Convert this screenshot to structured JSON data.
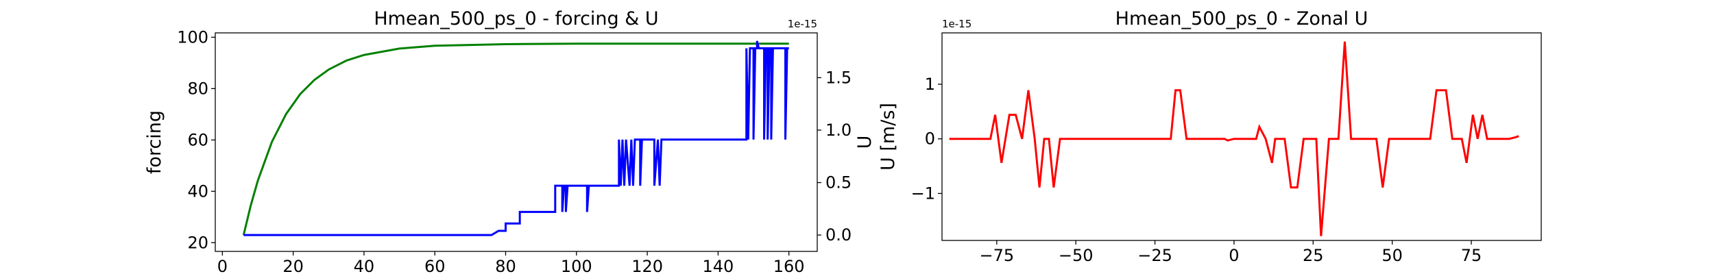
{
  "chart_data": [
    {
      "type": "line",
      "title": "Hmean_500_ps_0 - forcing & U",
      "ylabel": "forcing",
      "y2label": "U",
      "y2_offset": "1e-15",
      "xlim": [
        -2,
        168
      ],
      "xticks": [
        0,
        20,
        40,
        60,
        80,
        100,
        120,
        140,
        160
      ],
      "ylim": [
        16.6,
        101.7
      ],
      "yticks": [
        20,
        40,
        60,
        80,
        100
      ],
      "y2lim": [
        -0.156,
        1.927
      ],
      "y2ticks": [
        {
          "value": 0,
          "label": "0.0"
        },
        {
          "value": 0.5,
          "label": "0.5"
        },
        {
          "value": 1.0,
          "label": "1.0"
        },
        {
          "value": 1.5,
          "label": "1.5"
        }
      ],
      "series": [
        {
          "name": "forcing",
          "color": "#008000",
          "x": [
            6,
            8,
            10,
            14,
            18,
            22,
            26,
            30,
            35,
            40,
            50,
            60,
            80,
            100,
            130,
            160
          ],
          "values": [
            23.0,
            34.4,
            44.1,
            59.3,
            70.1,
            77.9,
            83.4,
            87.4,
            90.9,
            93.1,
            95.6,
            96.7,
            97.3,
            97.5,
            97.5,
            97.5
          ]
        },
        {
          "name": "U",
          "color": "#0000ff",
          "axis": "y2",
          "x": [
            6,
            76,
            78,
            80,
            80,
            84,
            84,
            94,
            94,
            96,
            96,
            96.5,
            97,
            97,
            97.5,
            103,
            103,
            103.5,
            112,
            112,
            112.5,
            113,
            113.5,
            114,
            115,
            115.5,
            116,
            116.5,
            118,
            118,
            118.5,
            122,
            122,
            123,
            123.5,
            124,
            148,
            148,
            148.5,
            149,
            150,
            150,
            150.5,
            151,
            151,
            151.5,
            153,
            153,
            153.5,
            154,
            154,
            154.5,
            155,
            155,
            155.5,
            159,
            159,
            159.5,
            160
          ],
          "values": [
            0,
            0,
            0.04,
            0.04,
            0.11,
            0.11,
            0.22,
            0.22,
            0.47,
            0.47,
            0.22,
            0.47,
            0.47,
            0.22,
            0.47,
            0.47,
            0.22,
            0.47,
            0.47,
            0.91,
            0.47,
            0.91,
            0.47,
            0.91,
            0.47,
            0.91,
            0.47,
            0.91,
            0.91,
            0.47,
            0.91,
            0.91,
            0.47,
            0.91,
            0.47,
            0.91,
            0.91,
            1.78,
            0.91,
            1.78,
            1.78,
            0.91,
            1.78,
            1.78,
            1.85,
            1.78,
            1.78,
            0.91,
            1.78,
            1.78,
            0.91,
            1.78,
            1.78,
            0.91,
            1.78,
            1.78,
            0.91,
            1.78,
            1.78
          ]
        }
      ]
    },
    {
      "type": "line",
      "title": "Hmean_500_ps_0 - Zonal U",
      "ylabel": "U [m/s]",
      "y_offset": "1e-15",
      "xlim": [
        -92.3,
        97.1
      ],
      "xticks": [
        {
          "value": -75,
          "label": "−75"
        },
        {
          "value": -50,
          "label": "−50"
        },
        {
          "value": -25,
          "label": "−25"
        },
        0,
        25,
        50,
        75
      ],
      "ylim": [
        -1.86,
        1.94
      ],
      "yticks": [
        {
          "value": -1,
          "label": "−1"
        },
        0,
        1
      ],
      "series": [
        {
          "name": "U",
          "color": "#ff0000",
          "x": [
            -90,
            -77,
            -75.5,
            -73.5,
            -71,
            -69,
            -67,
            -65,
            -63,
            -61.5,
            -60,
            -58.5,
            -57,
            -55,
            -20,
            -18.5,
            -17,
            -15,
            -3,
            -2,
            0,
            2,
            7,
            8,
            10,
            12,
            13,
            16,
            18,
            20,
            22,
            26,
            27.5,
            30,
            33,
            35,
            37,
            45,
            47,
            49,
            62,
            64,
            67,
            69,
            72,
            73.5,
            75.5,
            77,
            78.5,
            80,
            87,
            89,
            90
          ],
          "values": [
            0,
            0,
            0.44,
            -0.44,
            0.44,
            0.44,
            0,
            0.89,
            0,
            -0.89,
            0,
            0,
            -0.89,
            0,
            0,
            0.89,
            0.89,
            0,
            0,
            -0.03,
            0,
            0,
            0,
            0.22,
            0,
            -0.44,
            0,
            0,
            -0.89,
            -0.89,
            0,
            0,
            -1.78,
            0,
            0,
            1.78,
            0,
            0,
            -0.89,
            0,
            0,
            0.89,
            0.89,
            0,
            0,
            -0.44,
            0.44,
            0,
            0.44,
            0,
            0,
            0.03,
            0.05
          ]
        }
      ]
    }
  ]
}
